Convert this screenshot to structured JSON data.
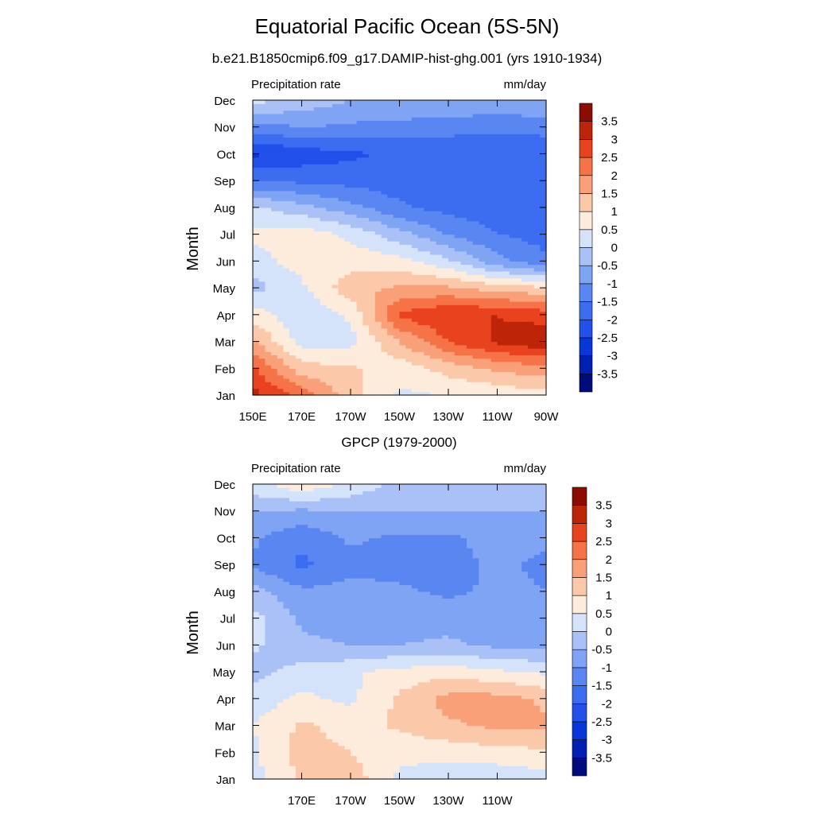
{
  "page": {
    "title": "Equatorial Pacific Ocean (5S-5N)",
    "subtitle": "b.e21.B1850cmip6.f09_g17.DAMIP-hist-ghg.001 (yrs 1910-1934)"
  },
  "chart_data": [
    {
      "type": "heatmap",
      "title": "",
      "left_label": "Precipitation rate",
      "right_label": "mm/day",
      "ylabel": "Month",
      "xlabel": "",
      "x_ticklabels": [
        "150E",
        "170E",
        "170W",
        "150W",
        "130W",
        "110W",
        "90W"
      ],
      "y_ticklabels": [
        "Jan",
        "Feb",
        "Mar",
        "Apr",
        "May",
        "Jun",
        "Jul",
        "Aug",
        "Sep",
        "Oct",
        "Nov",
        "Dec"
      ],
      "x_range_deg_east": [
        150,
        270
      ],
      "colorbar_labels": [
        "3.5",
        "3",
        "2.5",
        "2",
        "1.5",
        "1",
        "0.5",
        "0",
        "-0.5",
        "-1",
        "-1.5",
        "-2",
        "-2.5",
        "-3",
        "-3.5"
      ],
      "values_mm_day": [
        [
          3.2,
          2.3,
          1.2,
          0.4,
          0.5,
          0.6,
          0.8
        ],
        [
          2.6,
          1.2,
          1.1,
          0.7,
          1.2,
          1.6,
          1.8
        ],
        [
          1.6,
          0.3,
          0.3,
          1.5,
          2.5,
          3.1,
          3.4
        ],
        [
          0.8,
          0.1,
          0.6,
          2.6,
          3.0,
          3.0,
          2.8
        ],
        [
          -0.2,
          0.4,
          1.3,
          1.6,
          1.6,
          1.3,
          1.1
        ],
        [
          0.3,
          0.7,
          0.8,
          0.7,
          0.1,
          -0.8,
          -1.4
        ],
        [
          0.6,
          0.8,
          0.4,
          -0.3,
          -1.0,
          -1.5,
          -1.7
        ],
        [
          0.1,
          -0.3,
          -0.8,
          -1.4,
          -1.7,
          -1.8,
          -1.8
        ],
        [
          -1.5,
          -1.6,
          -1.7,
          -1.8,
          -1.9,
          -1.9,
          -1.9
        ],
        [
          -2.6,
          -2.3,
          -2.1,
          -1.9,
          -1.9,
          -1.9,
          -1.9
        ],
        [
          -1.2,
          -1.0,
          -1.1,
          -1.2,
          -1.3,
          -1.4,
          -1.3
        ],
        [
          0.2,
          -0.2,
          -0.5,
          -0.5,
          -0.5,
          -0.6,
          -0.5
        ]
      ]
    },
    {
      "type": "heatmap",
      "title": "GPCP (1979-2000)",
      "left_label": "Precipitation rate",
      "right_label": "mm/day",
      "ylabel": "Month",
      "xlabel": "",
      "x_ticklabels": [
        "170E",
        "170W",
        "150W",
        "130W",
        "110W"
      ],
      "y_ticklabels": [
        "Jan",
        "Feb",
        "Mar",
        "Apr",
        "May",
        "Jun",
        "Jul",
        "Aug",
        "Sep",
        "Oct",
        "Nov",
        "Dec"
      ],
      "x_range_deg_east": [
        150,
        270
      ],
      "colorbar_labels": [
        "3.5",
        "3",
        "2.5",
        "2",
        "1.5",
        "1",
        "0.5",
        "0",
        "-0.5",
        "-1",
        "-1.5",
        "-2",
        "-2.5",
        "-3",
        "-3.5"
      ],
      "values_mm_day": [
        [
          0.3,
          1.1,
          1.3,
          0.4,
          0.2,
          0.1,
          0.3
        ],
        [
          0.4,
          1.2,
          1.0,
          0.6,
          0.7,
          0.8,
          0.9
        ],
        [
          0.5,
          1.1,
          0.8,
          1.1,
          1.4,
          1.6,
          1.6
        ],
        [
          0.2,
          0.6,
          0.4,
          1.1,
          1.7,
          1.7,
          1.4
        ],
        [
          -0.2,
          0.2,
          0.4,
          0.7,
          0.8,
          0.6,
          0.4
        ],
        [
          0.1,
          -0.4,
          -0.5,
          -0.5,
          -0.4,
          -0.6,
          -0.6
        ],
        [
          0.2,
          -0.6,
          -0.7,
          -0.8,
          -0.7,
          -0.7,
          -0.7
        ],
        [
          -0.3,
          -0.9,
          -0.8,
          -0.9,
          -1.1,
          -0.9,
          -1.0
        ],
        [
          -1.1,
          -1.6,
          -1.2,
          -1.2,
          -1.2,
          -0.9,
          -1.1
        ],
        [
          -0.9,
          -1.4,
          -0.9,
          -1.1,
          -1.1,
          -0.8,
          -0.9
        ],
        [
          -0.5,
          -0.6,
          -0.5,
          -0.5,
          -0.5,
          -0.5,
          -0.5
        ],
        [
          0.3,
          0.9,
          0.4,
          -0.2,
          -0.3,
          -0.3,
          -0.3
        ]
      ]
    }
  ]
}
